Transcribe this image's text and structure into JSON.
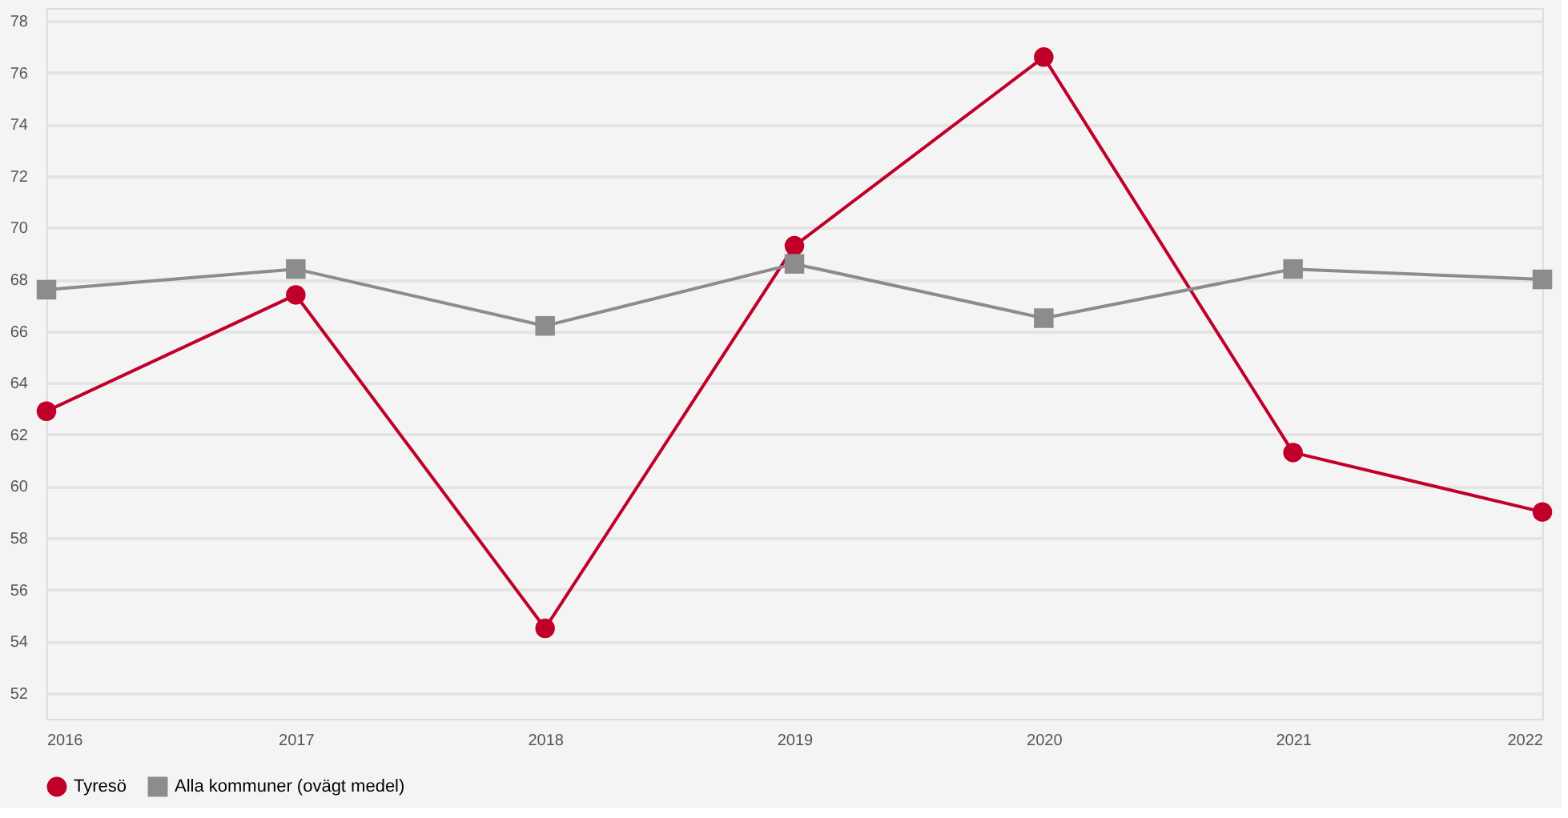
{
  "chart_data": {
    "type": "line",
    "x": [
      2016,
      2017,
      2018,
      2019,
      2020,
      2021,
      2022
    ],
    "series": [
      {
        "name": "Tyresö",
        "color": "#c0002a",
        "marker": "circle",
        "values": [
          62.9,
          67.4,
          54.5,
          69.3,
          76.6,
          61.3,
          59.0
        ]
      },
      {
        "name": "Alla kommuner (ovägt medel)",
        "color": "#8c8c8c",
        "marker": "square",
        "values": [
          67.6,
          68.4,
          66.2,
          68.6,
          66.5,
          68.4,
          68.0
        ]
      }
    ],
    "xlim": [
      2016,
      2022
    ],
    "xticks": [
      2016,
      2017,
      2018,
      2019,
      2020,
      2021,
      2022
    ],
    "ylim": [
      51,
      78.5
    ],
    "yticks": [
      52,
      54,
      56,
      58,
      60,
      62,
      64,
      66,
      68,
      70,
      72,
      74,
      76,
      78
    ],
    "grid": "y",
    "legend": "bottom",
    "line_style": "solid"
  }
}
